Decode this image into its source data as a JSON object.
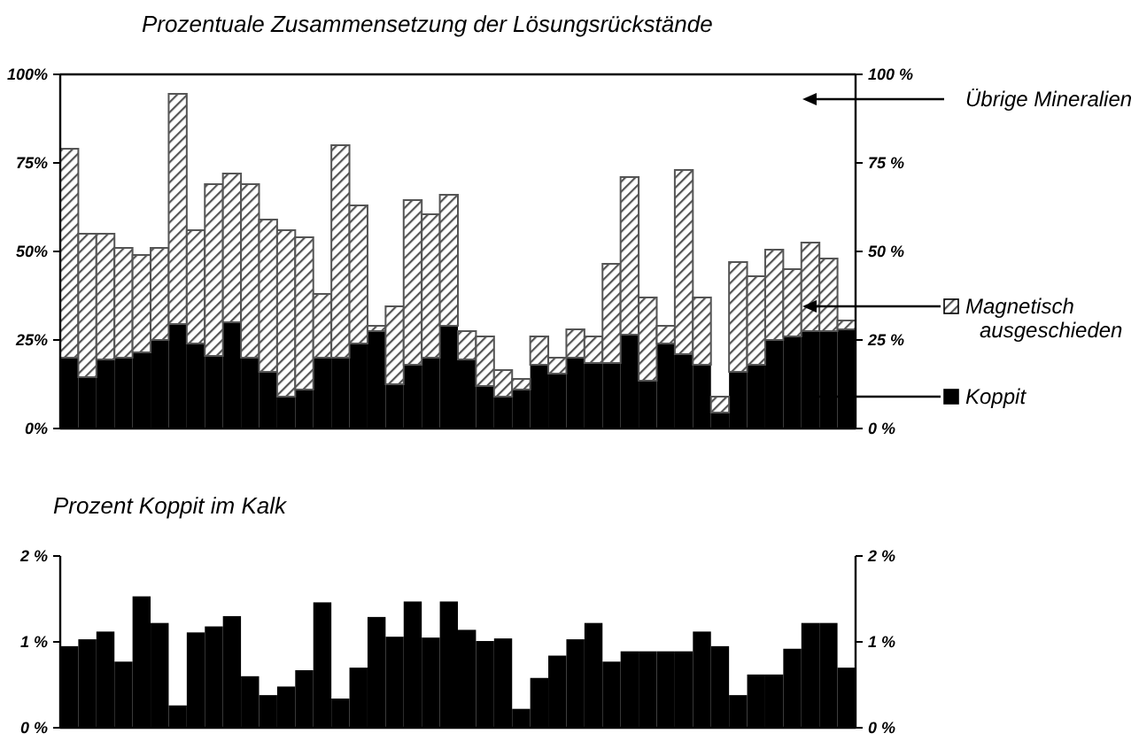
{
  "chart_data": [
    {
      "type": "bar",
      "title": "Prozentuale Zusammensetzung der Lösungsrückstände",
      "stacked": true,
      "legend": "right",
      "grid": false,
      "categories": [
        null,
        null,
        null,
        null,
        null,
        null,
        null,
        null,
        null,
        null,
        null,
        null,
        null,
        null,
        null,
        null,
        null,
        null,
        null,
        null,
        null,
        null,
        null,
        null,
        null,
        null,
        null,
        null,
        null,
        null,
        null,
        null,
        null,
        null,
        null,
        null,
        null,
        null,
        null,
        null,
        null,
        null,
        null,
        null
      ],
      "series": [
        {
          "name": "Koppit",
          "color": "#000000",
          "values": [
            20,
            14.5,
            19.5,
            20,
            21.5,
            25,
            29.5,
            24,
            20.5,
            30,
            20,
            16,
            9,
            11,
            20,
            20,
            24,
            27.5,
            12.5,
            18,
            20,
            29,
            19.5,
            12,
            9,
            11,
            18,
            15.5,
            20,
            18.5,
            18.5,
            26.5,
            13.5,
            24,
            21,
            18,
            4.5,
            16,
            18,
            25,
            26,
            27.5,
            27.5,
            28
          ]
        },
        {
          "name": "Magnetisch ausgeschieden",
          "color": "#555555",
          "values": [
            59,
            40.5,
            35.5,
            31,
            27.5,
            26,
            65,
            32,
            48.5,
            42,
            49,
            43,
            47,
            43,
            18,
            60,
            39,
            1.5,
            22,
            46.5,
            40.5,
            37,
            8,
            14,
            7.5,
            3,
            8,
            4.5,
            8,
            7.5,
            28,
            44.5,
            23.5,
            5,
            52,
            19,
            4.5,
            31,
            25,
            25.5,
            19,
            25,
            20.5,
            2.5
          ]
        }
      ],
      "ylim": [
        0,
        100
      ],
      "yticks": [
        {
          "value": 0,
          "label": "0%"
        },
        {
          "value": 25,
          "label": "25%"
        },
        {
          "value": 50,
          "label": "50%"
        },
        {
          "value": 75,
          "label": "75%"
        },
        {
          "value": 100,
          "label": "100%"
        }
      ],
      "y2lim": [
        0,
        100
      ],
      "y2ticks": [
        {
          "value": 0,
          "label": "0 %"
        },
        {
          "value": 25,
          "label": "25 %"
        },
        {
          "value": 50,
          "label": "50 %"
        },
        {
          "value": 75,
          "label": "75 %"
        },
        {
          "value": 100,
          "label": "100 %"
        }
      ],
      "annotations": [
        "Übrige Mineralien"
      ]
    },
    {
      "type": "bar",
      "title": "Prozent Koppit im Kalk",
      "grid": false,
      "color": "#000000",
      "categories": [
        null,
        null,
        null,
        null,
        null,
        null,
        null,
        null,
        null,
        null,
        null,
        null,
        null,
        null,
        null,
        null,
        null,
        null,
        null,
        null,
        null,
        null,
        null,
        null,
        null,
        null,
        null,
        null,
        null,
        null,
        null,
        null,
        null,
        null,
        null,
        null,
        null,
        null,
        null,
        null,
        null,
        null,
        null,
        null
      ],
      "values": [
        0.95,
        1.03,
        1.12,
        0.77,
        1.53,
        1.22,
        0.26,
        1.11,
        1.18,
        1.3,
        0.6,
        0.38,
        0.48,
        0.67,
        1.46,
        0.34,
        0.7,
        1.29,
        1.06,
        1.47,
        1.05,
        1.47,
        1.14,
        1.01,
        1.04,
        0.22,
        0.58,
        0.84,
        1.03,
        1.22,
        0.77,
        0.89,
        0.89,
        0.89,
        0.89,
        1.12,
        0.95,
        0.38,
        0.62,
        0.62,
        0.92,
        1.22,
        1.22,
        0.7
      ],
      "ylim": [
        0,
        2
      ],
      "yticks": [
        {
          "value": 0,
          "label": "0 %"
        },
        {
          "value": 1,
          "label": "1 %"
        },
        {
          "value": 2,
          "label": "2 %"
        }
      ],
      "y2lim": [
        0,
        2
      ],
      "y2ticks": [
        {
          "value": 0,
          "label": "0 %"
        },
        {
          "value": 1,
          "label": "1 %"
        },
        {
          "value": 2,
          "label": "2 %"
        }
      ]
    }
  ]
}
